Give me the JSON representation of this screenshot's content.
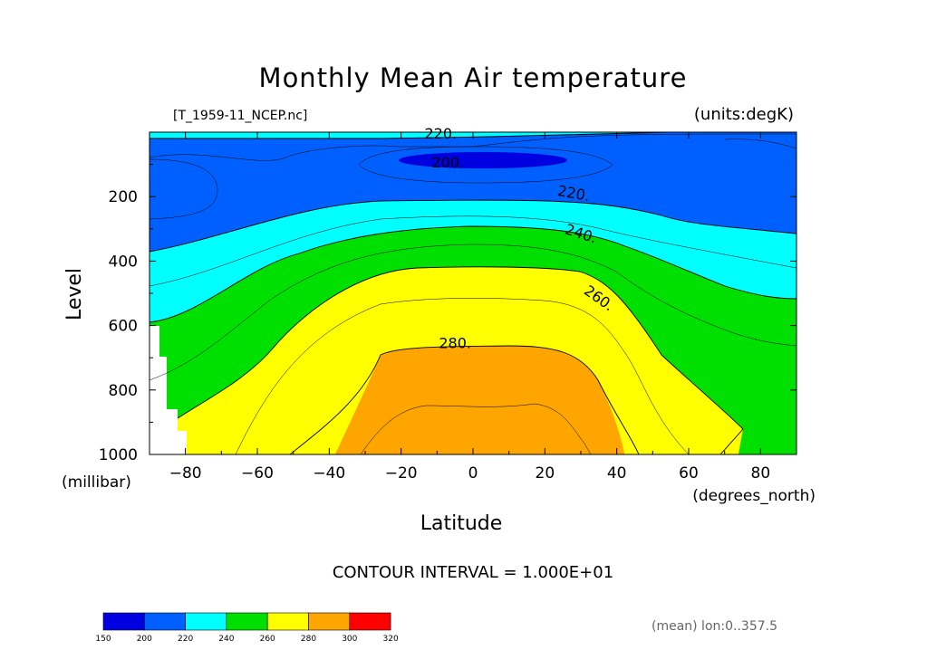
{
  "title": "Monthly Mean Air temperature",
  "file_label": "[T_1959-11_NCEP.nc]",
  "units_label": "(units:degK)",
  "contour_interval": "CONTOUR INTERVAL = 1.000E+01",
  "mean_note": "(mean) lon:0..357.5",
  "chart_data": {
    "type": "contour",
    "xlabel": "Latitude",
    "x_unit": "(degrees_north)",
    "ylabel": "Level",
    "y_unit": "(millibar)",
    "xlim": [
      -90,
      90
    ],
    "ylim": [
      1000,
      0
    ],
    "x_ticks": [
      -80,
      -60,
      -40,
      -20,
      0,
      20,
      40,
      60,
      80
    ],
    "x_tick_labels": [
      "-80",
      "-60",
      "-40",
      "-20",
      "0",
      "20",
      "40",
      "60",
      "80"
    ],
    "y_ticks": [
      200,
      400,
      600,
      800,
      1000
    ],
    "y_tick_labels": [
      "200",
      "400",
      "600",
      "800",
      "1000"
    ],
    "contour_labels": [
      {
        "text": "220.",
        "lat": -9,
        "level": 20
      },
      {
        "text": "200.",
        "lat": -7,
        "level": 110
      },
      {
        "text": "220.",
        "lat": 28,
        "level": 205
      },
      {
        "text": "240.",
        "lat": 30,
        "level": 330
      },
      {
        "text": "260.",
        "lat": 35,
        "level": 530
      },
      {
        "text": "280.",
        "lat": -5,
        "level": 670
      }
    ],
    "colorbar": {
      "levels": [
        "150",
        "200",
        "220",
        "240",
        "260",
        "280",
        "300",
        "320"
      ],
      "colors": [
        "#0000e0",
        "#0060ff",
        "#00ffff",
        "#00e000",
        "#ffff00",
        "#ffa500",
        "#ff0000"
      ]
    }
  }
}
